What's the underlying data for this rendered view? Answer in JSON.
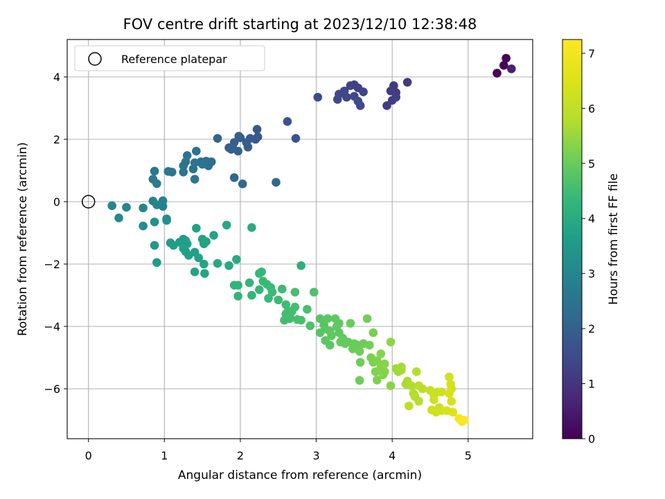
{
  "chart_data": {
    "type": "scatter",
    "title": "FOV centre drift starting at 2023/12/10 12:38:48",
    "xlabel": "Angular distance from reference (arcmin)",
    "ylabel": "Rotation from reference (arcmin)",
    "xlim": [
      -0.28,
      5.85
    ],
    "ylim": [
      -7.6,
      5.2
    ],
    "xticks": [
      0,
      1,
      2,
      3,
      4,
      5
    ],
    "yticks": [
      -6,
      -4,
      -2,
      0,
      2,
      4
    ],
    "xtick_labels": [
      "0",
      "1",
      "2",
      "3",
      "4",
      "5"
    ],
    "ytick_labels": [
      "−6",
      "−4",
      "−2",
      "0",
      "2",
      "4"
    ],
    "grid": true,
    "legend": {
      "placement": "top-left",
      "entries": [
        "Reference platepar"
      ]
    },
    "reference_point": {
      "x": 0,
      "y": 0
    },
    "colorbar": {
      "label": "Hours from first FF file",
      "colormap": "viridis",
      "range": [
        0,
        7.25
      ],
      "ticks": [
        0,
        1,
        2,
        3,
        4,
        5,
        6,
        7
      ],
      "tick_labels": [
        "0",
        "1",
        "2",
        "3",
        "4",
        "5",
        "6",
        "7"
      ]
    },
    "points": [
      [
        5.38,
        4.12,
        0.05
      ],
      [
        5.47,
        4.37,
        0.08
      ],
      [
        5.5,
        4.6,
        0.1
      ],
      [
        5.57,
        4.26,
        0.6
      ],
      [
        4.2,
        3.83,
        1.1
      ],
      [
        4.05,
        3.5,
        1.1
      ],
      [
        4.02,
        3.72,
        1.1
      ],
      [
        3.98,
        3.55,
        1.15
      ],
      [
        3.93,
        3.08,
        1.15
      ],
      [
        4.0,
        3.25,
        1.15
      ],
      [
        4.05,
        3.35,
        1.2
      ],
      [
        3.5,
        3.75,
        1.3
      ],
      [
        3.45,
        3.72,
        1.3
      ],
      [
        3.55,
        3.65,
        1.3
      ],
      [
        3.62,
        3.52,
        1.35
      ],
      [
        3.4,
        3.35,
        1.35
      ],
      [
        3.37,
        3.55,
        1.4
      ],
      [
        3.3,
        3.45,
        1.4
      ],
      [
        3.28,
        3.28,
        1.4
      ],
      [
        3.5,
        3.38,
        1.4
      ],
      [
        3.55,
        3.22,
        1.45
      ],
      [
        3.58,
        3.08,
        1.45
      ],
      [
        3.02,
        3.35,
        1.5
      ],
      [
        2.62,
        2.57,
        1.7
      ],
      [
        2.73,
        2.03,
        1.7
      ],
      [
        2.22,
        2.32,
        1.8
      ],
      [
        2.23,
        2.08,
        1.8
      ],
      [
        2.2,
        2.0,
        1.85
      ],
      [
        2.13,
        2.03,
        1.85
      ],
      [
        2.08,
        1.9,
        1.9
      ],
      [
        2.1,
        1.75,
        1.9
      ],
      [
        2.0,
        2.05,
        1.9
      ],
      [
        1.98,
        2.1,
        1.95
      ],
      [
        1.92,
        1.9,
        1.95
      ],
      [
        1.9,
        1.72,
        2.0
      ],
      [
        1.97,
        1.62,
        2.0
      ],
      [
        1.88,
        1.68,
        2.0
      ],
      [
        1.85,
        1.73,
        2.0
      ],
      [
        1.7,
        2.03,
        2.1
      ],
      [
        1.92,
        0.77,
        2.15
      ],
      [
        2.03,
        0.57,
        2.2
      ],
      [
        2.47,
        0.62,
        2.2
      ],
      [
        1.62,
        1.28,
        2.4
      ],
      [
        1.58,
        1.15,
        2.4
      ],
      [
        1.55,
        1.3,
        2.4
      ],
      [
        1.5,
        1.2,
        2.45
      ],
      [
        1.48,
        1.28,
        2.45
      ],
      [
        1.42,
        1.62,
        2.45
      ],
      [
        1.4,
        1.25,
        2.5
      ],
      [
        1.38,
        1.05,
        2.5
      ],
      [
        1.3,
        1.48,
        2.5
      ],
      [
        1.28,
        1.28,
        2.55
      ],
      [
        1.25,
        1.15,
        2.55
      ],
      [
        1.25,
        0.95,
        2.55
      ],
      [
        1.4,
        0.72,
        2.6
      ],
      [
        1.1,
        0.95,
        2.6
      ],
      [
        1.05,
        0.97,
        2.6
      ],
      [
        0.87,
        0.98,
        2.65
      ],
      [
        0.85,
        0.72,
        2.65
      ],
      [
        0.9,
        0.58,
        2.7
      ],
      [
        0.98,
        -0.15,
        2.9
      ],
      [
        0.98,
        0.03,
        2.9
      ],
      [
        0.85,
        0.02,
        2.9
      ],
      [
        0.9,
        -0.1,
        2.95
      ],
      [
        0.72,
        -0.2,
        2.95
      ],
      [
        0.5,
        -0.18,
        3.0
      ],
      [
        0.31,
        -0.13,
        3.0
      ],
      [
        0.4,
        -0.52,
        3.1
      ],
      [
        0.72,
        -0.78,
        3.2
      ],
      [
        0.87,
        -0.65,
        3.25
      ],
      [
        1.03,
        -0.6,
        3.3
      ],
      [
        1.03,
        -0.55,
        3.3
      ],
      [
        0.87,
        -1.4,
        3.5
      ],
      [
        0.9,
        -1.95,
        3.55
      ],
      [
        1.08,
        -1.32,
        3.6
      ],
      [
        1.12,
        -1.4,
        3.6
      ],
      [
        1.2,
        -1.3,
        3.6
      ],
      [
        1.25,
        -1.2,
        3.65
      ],
      [
        1.28,
        -1.25,
        3.65
      ],
      [
        1.3,
        -1.35,
        3.65
      ],
      [
        1.25,
        -1.5,
        3.7
      ],
      [
        1.28,
        -1.6,
        3.7
      ],
      [
        1.32,
        -1.72,
        3.7
      ],
      [
        1.4,
        -1.62,
        3.7
      ],
      [
        1.42,
        -0.85,
        3.7
      ],
      [
        1.45,
        -1.8,
        3.75
      ],
      [
        1.5,
        -1.2,
        3.75
      ],
      [
        1.52,
        -1.35,
        3.75
      ],
      [
        1.55,
        -1.28,
        3.8
      ],
      [
        1.65,
        -1.08,
        3.8
      ],
      [
        1.52,
        -2.0,
        3.8
      ],
      [
        1.4,
        -2.25,
        3.8
      ],
      [
        1.53,
        -2.3,
        3.8
      ],
      [
        1.82,
        -0.75,
        3.9
      ],
      [
        1.7,
        -1.98,
        3.9
      ],
      [
        1.85,
        -2.05,
        3.95
      ],
      [
        1.95,
        -1.85,
        4.0
      ],
      [
        2.15,
        -0.83,
        4.0
      ],
      [
        2.8,
        -2.05,
        4.1
      ],
      [
        1.92,
        -2.68,
        4.25
      ],
      [
        1.97,
        -2.68,
        4.25
      ],
      [
        1.97,
        -3.03,
        4.25
      ],
      [
        2.12,
        -2.6,
        4.3
      ],
      [
        2.15,
        -3.0,
        4.3
      ],
      [
        2.25,
        -2.3,
        4.35
      ],
      [
        2.28,
        -2.25,
        4.35
      ],
      [
        2.25,
        -2.82,
        4.35
      ],
      [
        2.3,
        -2.55,
        4.4
      ],
      [
        2.35,
        -2.65,
        4.4
      ],
      [
        2.37,
        -3.1,
        4.4
      ],
      [
        2.4,
        -2.75,
        4.4
      ],
      [
        2.42,
        -2.9,
        4.45
      ],
      [
        2.5,
        -3.15,
        4.45
      ],
      [
        2.55,
        -2.8,
        4.45
      ],
      [
        2.6,
        -3.3,
        4.5
      ],
      [
        2.58,
        -3.8,
        4.5
      ],
      [
        2.6,
        -3.6,
        4.5
      ],
      [
        2.63,
        -3.5,
        4.5
      ],
      [
        2.65,
        -3.68,
        4.55
      ],
      [
        2.65,
        -3.75,
        4.55
      ],
      [
        2.68,
        -3.52,
        4.55
      ],
      [
        2.72,
        -3.38,
        4.55
      ],
      [
        2.75,
        -3.78,
        4.6
      ],
      [
        2.8,
        -3.8,
        4.6
      ],
      [
        2.72,
        -2.9,
        4.6
      ],
      [
        2.88,
        -3.45,
        4.6
      ],
      [
        2.92,
        -3.98,
        4.65
      ],
      [
        2.97,
        -2.9,
        4.65
      ],
      [
        3.05,
        -3.75,
        4.8
      ],
      [
        3.05,
        -4.2,
        4.8
      ],
      [
        3.1,
        -3.95,
        4.8
      ],
      [
        3.12,
        -4.08,
        4.8
      ],
      [
        3.15,
        -3.75,
        4.85
      ],
      [
        3.12,
        -4.45,
        4.85
      ],
      [
        3.18,
        -4.15,
        4.85
      ],
      [
        3.18,
        -4.6,
        4.85
      ],
      [
        3.2,
        -4.3,
        4.9
      ],
      [
        3.25,
        -3.75,
        4.9
      ],
      [
        3.27,
        -4.0,
        4.9
      ],
      [
        3.3,
        -4.2,
        4.9
      ],
      [
        3.3,
        -3.9,
        4.9
      ],
      [
        3.32,
        -4.5,
        4.95
      ],
      [
        3.35,
        -4.38,
        4.95
      ],
      [
        3.38,
        -4.55,
        4.95
      ],
      [
        3.42,
        -4.5,
        4.95
      ],
      [
        3.45,
        -3.9,
        5.0
      ],
      [
        3.48,
        -4.72,
        5.0
      ],
      [
        3.5,
        -4.55,
        5.0
      ],
      [
        3.55,
        -4.6,
        5.0
      ],
      [
        3.57,
        -4.8,
        5.05
      ],
      [
        3.58,
        -5.15,
        5.05
      ],
      [
        3.57,
        -5.73,
        5.05
      ],
      [
        3.62,
        -4.55,
        5.05
      ],
      [
        3.67,
        -3.75,
        5.1
      ],
      [
        3.7,
        -4.6,
        5.1
      ],
      [
        3.75,
        -4.2,
        5.15
      ],
      [
        3.72,
        -5.0,
        5.2
      ],
      [
        3.75,
        -5.15,
        5.2
      ],
      [
        3.78,
        -5.45,
        5.25
      ],
      [
        3.8,
        -5.72,
        5.25
      ],
      [
        3.8,
        -5.1,
        5.25
      ],
      [
        3.85,
        -5.3,
        5.3
      ],
      [
        3.85,
        -4.88,
        5.3
      ],
      [
        3.88,
        -5.55,
        5.3
      ],
      [
        3.9,
        -5.45,
        5.3
      ],
      [
        3.9,
        -5.2,
        5.35
      ],
      [
        3.98,
        -5.9,
        5.35
      ],
      [
        3.98,
        -4.5,
        5.4
      ],
      [
        4.05,
        -5.35,
        5.6
      ],
      [
        4.08,
        -5.45,
        5.6
      ],
      [
        4.12,
        -5.4,
        5.6
      ],
      [
        4.12,
        -5.3,
        5.65
      ],
      [
        4.18,
        -5.85,
        5.7
      ],
      [
        4.2,
        -5.75,
        5.7
      ],
      [
        4.25,
        -5.9,
        5.75
      ],
      [
        4.28,
        -6.15,
        5.75
      ],
      [
        4.3,
        -6.25,
        5.8
      ],
      [
        4.32,
        -5.45,
        5.8
      ],
      [
        4.35,
        -6.4,
        5.85
      ],
      [
        4.35,
        -5.9,
        5.85
      ],
      [
        4.4,
        -6.0,
        5.9
      ],
      [
        4.22,
        -6.55,
        5.95
      ],
      [
        4.5,
        -6.05,
        6.1
      ],
      [
        4.55,
        -6.2,
        6.15
      ],
      [
        4.6,
        -6.1,
        6.15
      ],
      [
        4.55,
        -6.35,
        6.2
      ],
      [
        4.62,
        -6.6,
        6.2
      ],
      [
        4.65,
        -6.1,
        6.2
      ],
      [
        4.52,
        -6.68,
        6.25
      ],
      [
        4.58,
        -6.75,
        6.25
      ],
      [
        4.65,
        -6.7,
        6.3
      ],
      [
        4.75,
        -5.62,
        6.3
      ],
      [
        4.77,
        -5.85,
        6.35
      ],
      [
        4.78,
        -6.0,
        6.35
      ],
      [
        4.75,
        -6.15,
        6.4
      ],
      [
        4.72,
        -6.7,
        6.4
      ],
      [
        4.78,
        -6.4,
        6.45
      ],
      [
        4.8,
        -6.75,
        6.5
      ],
      [
        4.88,
        -6.95,
        7.1
      ],
      [
        4.92,
        -7.05,
        7.15
      ],
      [
        4.95,
        -7.0,
        7.2
      ]
    ]
  }
}
